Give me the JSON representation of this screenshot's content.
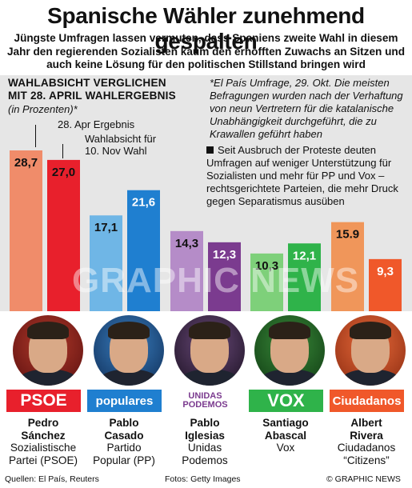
{
  "headline": "Spanische Wähler zunehmend gespalten",
  "standfirst": "Jüngste Umfragen lassen vermuten, dass Spaniens zweite Wahl in diesem Jahr den regierenden Sozialisten kaum den erhofften Zuwachs an Sitzen und auch keine Lösung für den politischen Stillstand bringen wird",
  "chart_data": {
    "type": "bar",
    "title": "Wahlabsicht Verglichen mit 28. April Wahlergebnis",
    "title_line1": "WAHLABSICHT VERGLICHEN",
    "title_line2": "MIT 28. APRIL WAHLERGEBNIS",
    "unit_note": "(in Prozenten)*",
    "categories": [
      "PSOE",
      "Populares",
      "Unidas Podemos",
      "Vox",
      "Ciudadanos"
    ],
    "series": [
      {
        "name": "28. Apr Ergebnis",
        "values": [
          28.7,
          17.1,
          14.3,
          10.3,
          15.9
        ]
      },
      {
        "name": "Wahlabsicht für 10. Nov Wahl",
        "values": [
          27.0,
          21.6,
          12.3,
          12.1,
          9.3
        ]
      }
    ],
    "value_labels": [
      [
        "28,7",
        "17,1",
        "14,3",
        "10,3",
        "15.9"
      ],
      [
        "27,0",
        "21,6",
        "12,3",
        "12,1",
        "9,3"
      ]
    ],
    "colors": [
      [
        "#f08c6a",
        "#6fb6e6",
        "#b58cc8",
        "#7ed07a",
        "#f0965a"
      ],
      [
        "#e8202c",
        "#1f7fd0",
        "#7b3b8f",
        "#2fb34a",
        "#f0582a"
      ]
    ],
    "legend_line1": "28. Apr Ergebnis",
    "legend_line2a": "Wahlabsicht für",
    "legend_line2b": "10. Nov Wahl",
    "ylim": [
      0,
      30
    ]
  },
  "note": "*El País Umfrage, 29. Okt. Die meisten Befragungen wurden nach der Verhaftung von neun Vertretern für die katalanische Unabhängigkeit durchgeführt, die zu Krawallen geführt haben",
  "bullet": "Seit Ausbruch der Proteste deuten Umfragen auf weniger Unterstützung für Sozialisten und mehr für PP und Vox – rechtsgerichtete Parteien, die mehr Druck gegen Separatismus ausüben",
  "watermark": "GRAPHIC NEWS",
  "candidates": [
    {
      "logo": "PSOE",
      "logo_color": "#e8202c",
      "name1": "Pedro",
      "name2": "Sánchez",
      "party1": "Sozialistische",
      "party2": "Partei (PSOE)"
    },
    {
      "logo": "populares",
      "logo_color": "#1f7fd0",
      "name1": "Pablo",
      "name2": "Casado",
      "party1": "Partido",
      "party2": "Popular (PP)"
    },
    {
      "logo": "UNIDAS PODEMOS",
      "logo_color": "#7b3b8f",
      "name1": "Pablo",
      "name2": "Iglesias",
      "party1": "Unidas",
      "party2": "Podemos"
    },
    {
      "logo": "VOX",
      "logo_color": "#2fb34a",
      "name1": "Santiago",
      "name2": "Abascal",
      "party1": "Vox",
      "party2": ""
    },
    {
      "logo": "Ciudadanos",
      "logo_color": "#f0582a",
      "name1": "Albert",
      "name2": "Rivera",
      "party1": "Ciudadanos",
      "party2": "“Citizens”"
    }
  ],
  "footer": {
    "sources": "Quellen: El País, Reuters",
    "photos": "Fotos: Getty Images",
    "credit": "© GRAPHIC NEWS"
  }
}
